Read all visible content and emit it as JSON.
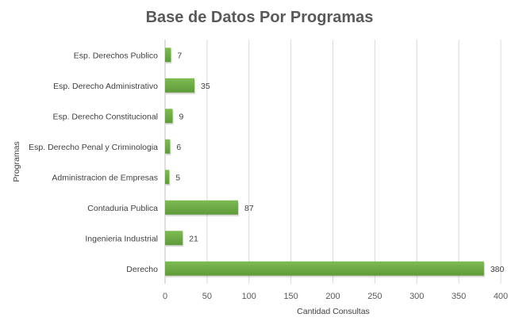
{
  "chart_data": {
    "type": "bar",
    "orientation": "horizontal",
    "title": "Base de Datos Por Programas",
    "xlabel": "Cantidad Consultas",
    "ylabel": "Programas",
    "categories": [
      "Esp. Derechos Publico",
      "Esp. Derecho Administrativo",
      "Esp. Derecho Constitucional",
      "Esp. Derecho Penal y Criminologia",
      "Administracion de Empresas",
      "Contaduria Publica",
      "Ingenieria Industrial",
      "Derecho"
    ],
    "values": [
      7,
      35,
      9,
      6,
      5,
      87,
      21,
      380
    ],
    "xlim": [
      0,
      400
    ],
    "xticks": [
      0,
      50,
      100,
      150,
      200,
      250,
      300,
      350,
      400
    ],
    "grid": true,
    "data_labels": true,
    "bar_color": "#70ad47"
  }
}
